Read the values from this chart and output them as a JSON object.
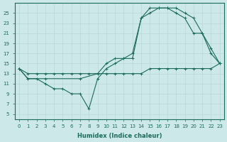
{
  "xlabel": "Humidex (Indice chaleur)",
  "ylabel": "",
  "bg_color": "#cde8e8",
  "line_color": "#1a6b5a",
  "grid_color": "#b8d8d8",
  "xlim": [
    -0.5,
    23.5
  ],
  "ylim": [
    4,
    27
  ],
  "xticks": [
    0,
    1,
    2,
    3,
    4,
    5,
    6,
    7,
    8,
    9,
    10,
    11,
    12,
    13,
    14,
    15,
    16,
    17,
    18,
    19,
    20,
    21,
    22,
    23
  ],
  "yticks": [
    5,
    7,
    9,
    11,
    13,
    15,
    17,
    19,
    21,
    23,
    25
  ],
  "line1_x": [
    0,
    1,
    2,
    3,
    4,
    5,
    6,
    7,
    8,
    9,
    10,
    11,
    12,
    13,
    14,
    15,
    16,
    17,
    18,
    19,
    20,
    21,
    22,
    23
  ],
  "line1_y": [
    14,
    13,
    13,
    13,
    13,
    13,
    13,
    13,
    13,
    13,
    13,
    13,
    13,
    13,
    13,
    14,
    14,
    14,
    14,
    14,
    14,
    14,
    14,
    15
  ],
  "line2_x": [
    0,
    1,
    2,
    3,
    4,
    5,
    6,
    7,
    8,
    9,
    10,
    11,
    12,
    13,
    14,
    15,
    16,
    17,
    18,
    19,
    20,
    21,
    22,
    23
  ],
  "line2_y": [
    14,
    12,
    12,
    11,
    10,
    10,
    9,
    9,
    6,
    12,
    14,
    15,
    16,
    17,
    24,
    26,
    26,
    26,
    26,
    25,
    24,
    21,
    18,
    15
  ],
  "line3_x": [
    0,
    1,
    3,
    7,
    9,
    10,
    11,
    12,
    13,
    14,
    15,
    16,
    17,
    18,
    19,
    20,
    21,
    22,
    23
  ],
  "line3_y": [
    14,
    12,
    12,
    12,
    13,
    15,
    16,
    16,
    16,
    24,
    25,
    26,
    26,
    25,
    24,
    21,
    21,
    17,
    15
  ]
}
